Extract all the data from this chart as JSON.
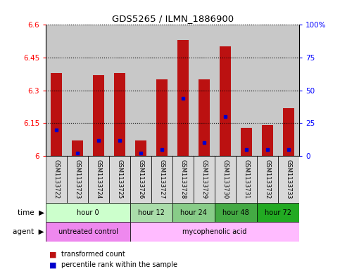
{
  "title": "GDS5265 / ILMN_1886900",
  "samples": [
    "GSM1133722",
    "GSM1133723",
    "GSM1133724",
    "GSM1133725",
    "GSM1133726",
    "GSM1133727",
    "GSM1133728",
    "GSM1133729",
    "GSM1133730",
    "GSM1133731",
    "GSM1133732",
    "GSM1133733"
  ],
  "transformed_counts": [
    6.38,
    6.07,
    6.37,
    6.38,
    6.07,
    6.35,
    6.53,
    6.35,
    6.5,
    6.13,
    6.14,
    6.22
  ],
  "percentile_ranks": [
    20,
    2,
    12,
    12,
    2,
    5,
    44,
    10,
    30,
    5,
    5,
    5
  ],
  "ymin": 6.0,
  "ymax": 6.6,
  "yticks": [
    6.0,
    6.15,
    6.3,
    6.45,
    6.6
  ],
  "ytick_labels": [
    "6",
    "6.15",
    "6.3",
    "6.45",
    "6.6"
  ],
  "y2ticks": [
    0,
    25,
    50,
    75,
    100
  ],
  "y2tick_labels": [
    "0",
    "25",
    "50",
    "75",
    "100%"
  ],
  "bar_color": "#bb1111",
  "percentile_color": "#0000cc",
  "time_groups": [
    {
      "label": "hour 0",
      "start": 0,
      "end": 3,
      "color": "#ccffcc"
    },
    {
      "label": "hour 12",
      "start": 4,
      "end": 5,
      "color": "#aaddaa"
    },
    {
      "label": "hour 24",
      "start": 6,
      "end": 7,
      "color": "#88cc88"
    },
    {
      "label": "hour 48",
      "start": 8,
      "end": 9,
      "color": "#44aa44"
    },
    {
      "label": "hour 72",
      "start": 10,
      "end": 11,
      "color": "#22aa22"
    }
  ],
  "agent_groups": [
    {
      "label": "untreated control",
      "start": 0,
      "end": 3,
      "color": "#ee88ee"
    },
    {
      "label": "mycophenolic acid",
      "start": 4,
      "end": 11,
      "color": "#ffbbff"
    }
  ],
  "legend_items": [
    {
      "label": "transformed count",
      "color": "#bb1111"
    },
    {
      "label": "percentile rank within the sample",
      "color": "#0000cc"
    }
  ]
}
